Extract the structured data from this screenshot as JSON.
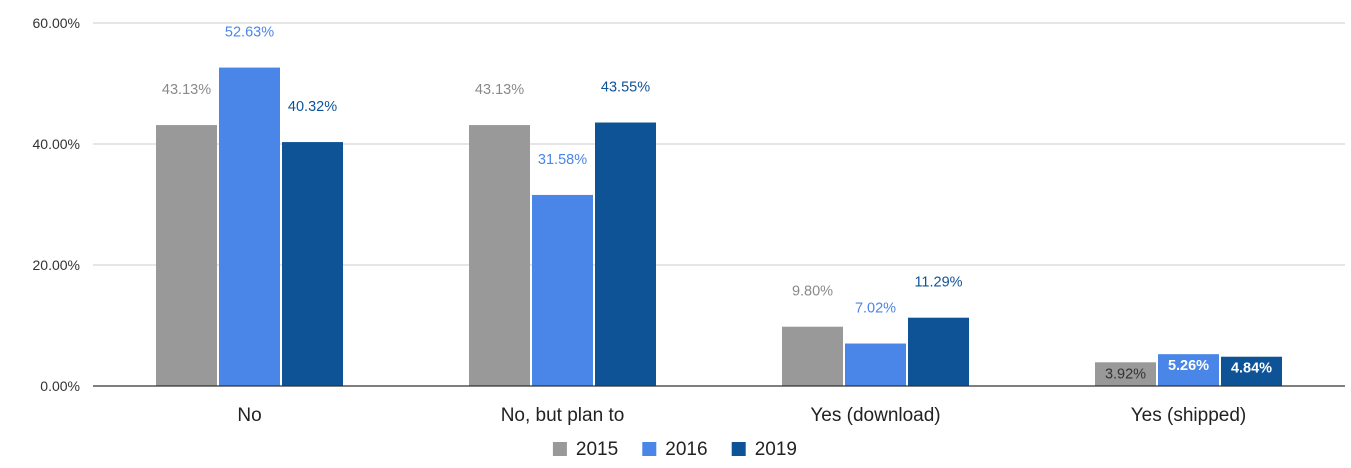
{
  "chart_data": {
    "type": "bar",
    "title": "",
    "xlabel": "",
    "ylabel": "",
    "ylim": [
      0,
      60
    ],
    "y_ticks": [
      0,
      20,
      40,
      60
    ],
    "y_tick_labels": [
      "0.00%",
      "20.00%",
      "40.00%",
      "60.00%"
    ],
    "grid": true,
    "legend_position": "bottom",
    "categories": [
      "No",
      "No, but plan to",
      "Yes (download)",
      "Yes (shipped)"
    ],
    "series": [
      {
        "name": "2015",
        "color": "#999999",
        "values": [
          43.13,
          43.13,
          9.8,
          3.92
        ],
        "labels": [
          "43.13%",
          "43.13%",
          "9.80%",
          "3.92%"
        ],
        "label_color": "#8a8a8a"
      },
      {
        "name": "2016",
        "color": "#4a86e8",
        "values": [
          52.63,
          31.58,
          7.02,
          5.26
        ],
        "labels": [
          "52.63%",
          "31.58%",
          "7.02%",
          "5.26%"
        ],
        "label_color": "#4a86e8"
      },
      {
        "name": "2019",
        "color": "#0e5396",
        "values": [
          40.32,
          43.55,
          11.29,
          4.84
        ],
        "labels": [
          "40.32%",
          "43.55%",
          "11.29%",
          "4.84%"
        ],
        "label_color": "#0e5396"
      }
    ]
  }
}
